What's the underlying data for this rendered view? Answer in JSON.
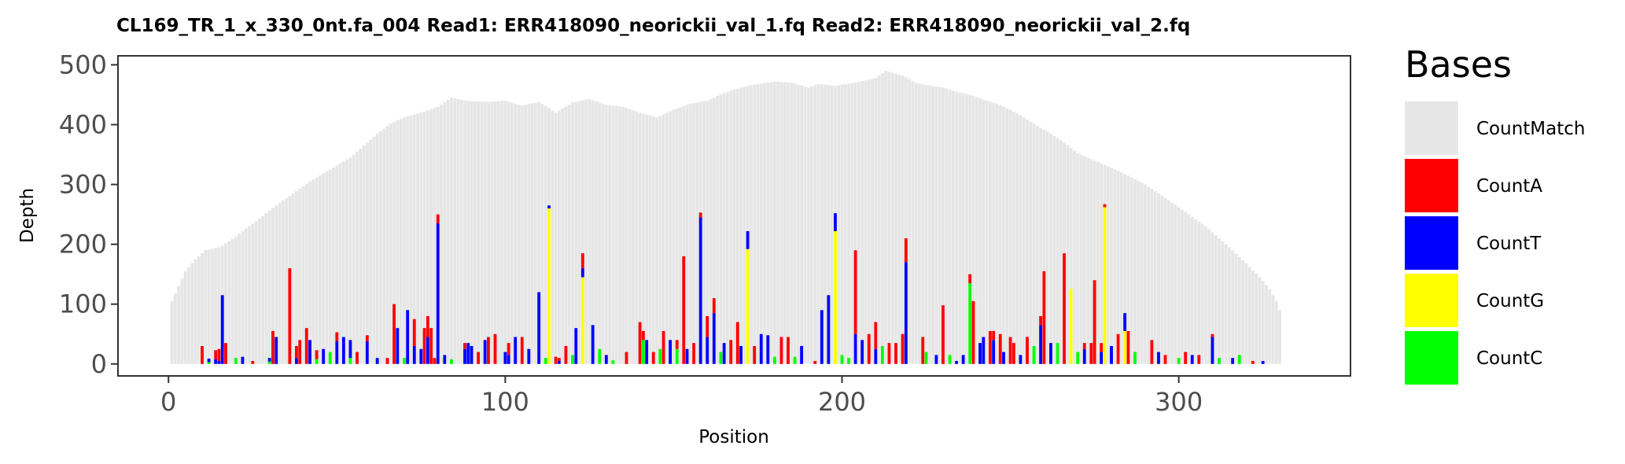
{
  "chart_data": {
    "type": "bar",
    "stacked": true,
    "title": "CL169_TR_1_x_330_0nt.fa_004   Read1: ERR418090_neorickii_val_1.fq   Read2: ERR418090_neorickii_val_2.fq",
    "xlabel": "Position",
    "ylabel": "Depth",
    "xlim": [
      -15,
      351
    ],
    "ylim": [
      -20,
      515
    ],
    "x_ticks": [
      0,
      100,
      200,
      300
    ],
    "y_ticks": [
      0,
      100,
      200,
      300,
      400,
      500
    ],
    "grid": false,
    "legend": {
      "title": "Bases",
      "position": "right",
      "items": [
        {
          "label": "CountMatch",
          "color": "#e6e6e6"
        },
        {
          "label": "CountA",
          "color": "#ff0000"
        },
        {
          "label": "CountT",
          "color": "#0000ff"
        },
        {
          "label": "CountG",
          "color": "#ffff00"
        },
        {
          "label": "CountC",
          "color": "#00ff00"
        }
      ]
    },
    "series_colors": {
      "match": "#e6e6e6",
      "A": "#ff0000",
      "T": "#0000ff",
      "G": "#ffff00",
      "C": "#00ff00"
    },
    "coverage_profile": [
      [
        1,
        105
      ],
      [
        3,
        130
      ],
      [
        5,
        155
      ],
      [
        8,
        175
      ],
      [
        11,
        190
      ],
      [
        15,
        195
      ],
      [
        18,
        205
      ],
      [
        22,
        222
      ],
      [
        27,
        243
      ],
      [
        32,
        265
      ],
      [
        37,
        285
      ],
      [
        42,
        305
      ],
      [
        48,
        325
      ],
      [
        54,
        345
      ],
      [
        58,
        365
      ],
      [
        62,
        385
      ],
      [
        66,
        402
      ],
      [
        70,
        412
      ],
      [
        75,
        420
      ],
      [
        80,
        430
      ],
      [
        84,
        445
      ],
      [
        88,
        440
      ],
      [
        95,
        438
      ],
      [
        100,
        440
      ],
      [
        105,
        432
      ],
      [
        110,
        438
      ],
      [
        115,
        420
      ],
      [
        120,
        437
      ],
      [
        125,
        443
      ],
      [
        130,
        433
      ],
      [
        135,
        430
      ],
      [
        140,
        420
      ],
      [
        145,
        412
      ],
      [
        150,
        425
      ],
      [
        155,
        435
      ],
      [
        160,
        440
      ],
      [
        165,
        453
      ],
      [
        170,
        462
      ],
      [
        175,
        468
      ],
      [
        180,
        472
      ],
      [
        185,
        470
      ],
      [
        190,
        462
      ],
      [
        193,
        468
      ],
      [
        198,
        465
      ],
      [
        204,
        470
      ],
      [
        210,
        478
      ],
      [
        213,
        490
      ],
      [
        218,
        482
      ],
      [
        222,
        470
      ],
      [
        226,
        465
      ],
      [
        230,
        462
      ],
      [
        234,
        455
      ],
      [
        238,
        450
      ],
      [
        242,
        442
      ],
      [
        246,
        435
      ],
      [
        250,
        425
      ],
      [
        254,
        412
      ],
      [
        258,
        398
      ],
      [
        262,
        385
      ],
      [
        266,
        370
      ],
      [
        270,
        352
      ],
      [
        275,
        340
      ],
      [
        280,
        328
      ],
      [
        285,
        315
      ],
      [
        290,
        300
      ],
      [
        294,
        285
      ],
      [
        298,
        270
      ],
      [
        303,
        250
      ],
      [
        308,
        230
      ],
      [
        312,
        210
      ],
      [
        316,
        190
      ],
      [
        320,
        168
      ],
      [
        324,
        145
      ],
      [
        327,
        125
      ],
      [
        329,
        105
      ],
      [
        330,
        90
      ]
    ],
    "mismatch_bars": [
      {
        "x": 10,
        "A": 30
      },
      {
        "x": 12,
        "T": 6,
        "C": 3
      },
      {
        "x": 14,
        "A": 15,
        "T": 8
      },
      {
        "x": 15,
        "A": 20,
        "T": 5
      },
      {
        "x": 16,
        "T": 115
      },
      {
        "x": 17,
        "A": 35
      },
      {
        "x": 20,
        "C": 10
      },
      {
        "x": 22,
        "T": 12
      },
      {
        "x": 25,
        "A": 5
      },
      {
        "x": 30,
        "T": 6,
        "C": 4
      },
      {
        "x": 31,
        "A": 55
      },
      {
        "x": 32,
        "T": 45
      },
      {
        "x": 36,
        "A": 160
      },
      {
        "x": 38,
        "A": 20,
        "T": 10
      },
      {
        "x": 39,
        "A": 40
      },
      {
        "x": 41,
        "A": 60
      },
      {
        "x": 42,
        "T": 40
      },
      {
        "x": 44,
        "A": 15,
        "C": 8
      },
      {
        "x": 46,
        "T": 25
      },
      {
        "x": 48,
        "C": 20
      },
      {
        "x": 50,
        "A": 15,
        "T": 38
      },
      {
        "x": 52,
        "T": 45
      },
      {
        "x": 54,
        "T": 30,
        "C": 10
      },
      {
        "x": 56,
        "A": 20
      },
      {
        "x": 59,
        "A": 10,
        "T": 38
      },
      {
        "x": 62,
        "T": 10
      },
      {
        "x": 65,
        "A": 10
      },
      {
        "x": 67,
        "A": 100
      },
      {
        "x": 68,
        "T": 60
      },
      {
        "x": 70,
        "C": 10
      },
      {
        "x": 71,
        "T": 90
      },
      {
        "x": 73,
        "A": 45,
        "T": 30
      },
      {
        "x": 75,
        "T": 25
      },
      {
        "x": 76,
        "A": 60
      },
      {
        "x": 77,
        "A": 35,
        "T": 45
      },
      {
        "x": 78,
        "A": 60
      },
      {
        "x": 79,
        "A": 10
      },
      {
        "x": 80,
        "A": 15,
        "T": 235
      },
      {
        "x": 82,
        "T": 15
      },
      {
        "x": 84,
        "C": 8
      },
      {
        "x": 88,
        "A": 10,
        "T": 25
      },
      {
        "x": 89,
        "T": 35
      },
      {
        "x": 90,
        "T": 30
      },
      {
        "x": 92,
        "A": 20
      },
      {
        "x": 94,
        "T": 40
      },
      {
        "x": 95,
        "A": 45
      },
      {
        "x": 97,
        "A": 50
      },
      {
        "x": 100,
        "T": 20
      },
      {
        "x": 101,
        "A": 20,
        "T": 15
      },
      {
        "x": 103,
        "T": 45
      },
      {
        "x": 105,
        "A": 45
      },
      {
        "x": 107,
        "T": 25
      },
      {
        "x": 110,
        "T": 120
      },
      {
        "x": 112,
        "C": 10
      },
      {
        "x": 113,
        "T": 5,
        "G": 260
      },
      {
        "x": 115,
        "A": 12
      },
      {
        "x": 116,
        "A": 5,
        "T": 5
      },
      {
        "x": 118,
        "A": 30
      },
      {
        "x": 120,
        "C": 15
      },
      {
        "x": 121,
        "T": 60
      },
      {
        "x": 123,
        "A": 25,
        "T": 15,
        "G": 145
      },
      {
        "x": 126,
        "T": 65
      },
      {
        "x": 128,
        "C": 25
      },
      {
        "x": 130,
        "T": 15
      },
      {
        "x": 132,
        "C": 6
      },
      {
        "x": 136,
        "A": 20
      },
      {
        "x": 140,
        "A": 70
      },
      {
        "x": 141,
        "A": 15,
        "C": 40
      },
      {
        "x": 142,
        "T": 40
      },
      {
        "x": 144,
        "A": 20
      },
      {
        "x": 146,
        "C": 25
      },
      {
        "x": 147,
        "A": 55
      },
      {
        "x": 149,
        "T": 40
      },
      {
        "x": 151,
        "A": 15,
        "C": 25
      },
      {
        "x": 153,
        "A": 180
      },
      {
        "x": 154,
        "T": 25
      },
      {
        "x": 156,
        "A": 35
      },
      {
        "x": 158,
        "A": 8,
        "T": 245
      },
      {
        "x": 160,
        "A": 35,
        "T": 45
      },
      {
        "x": 162,
        "A": 25,
        "T": 85
      },
      {
        "x": 164,
        "C": 20
      },
      {
        "x": 165,
        "T": 35
      },
      {
        "x": 167,
        "A": 40
      },
      {
        "x": 169,
        "A": 70
      },
      {
        "x": 170,
        "T": 30
      },
      {
        "x": 172,
        "T": 30,
        "G": 192
      },
      {
        "x": 174,
        "A": 30
      },
      {
        "x": 176,
        "T": 50
      },
      {
        "x": 178,
        "T": 48
      },
      {
        "x": 180,
        "C": 12
      },
      {
        "x": 182,
        "A": 45
      },
      {
        "x": 184,
        "A": 45
      },
      {
        "x": 186,
        "C": 12
      },
      {
        "x": 188,
        "T": 30
      },
      {
        "x": 192,
        "A": 5
      },
      {
        "x": 194,
        "T": 90
      },
      {
        "x": 196,
        "T": 115
      },
      {
        "x": 198,
        "T": 30,
        "G": 222
      },
      {
        "x": 200,
        "C": 15
      },
      {
        "x": 202,
        "C": 10
      },
      {
        "x": 204,
        "A": 140,
        "T": 50
      },
      {
        "x": 206,
        "T": 40
      },
      {
        "x": 208,
        "A": 50
      },
      {
        "x": 210,
        "A": 45,
        "T": 25
      },
      {
        "x": 212,
        "C": 30
      },
      {
        "x": 214,
        "A": 35
      },
      {
        "x": 216,
        "A": 35
      },
      {
        "x": 218,
        "A": 50
      },
      {
        "x": 219,
        "A": 40,
        "T": 170
      },
      {
        "x": 224,
        "A": 45
      },
      {
        "x": 225,
        "C": 20
      },
      {
        "x": 228,
        "T": 15
      },
      {
        "x": 230,
        "A": 98
      },
      {
        "x": 232,
        "C": 15
      },
      {
        "x": 234,
        "T": 5
      },
      {
        "x": 236,
        "T": 15
      },
      {
        "x": 238,
        "A": 15,
        "C": 135
      },
      {
        "x": 239,
        "A": 105
      },
      {
        "x": 241,
        "T": 35
      },
      {
        "x": 242,
        "T": 45
      },
      {
        "x": 244,
        "A": 55
      },
      {
        "x": 245,
        "A": 15,
        "T": 40
      },
      {
        "x": 247,
        "A": 50
      },
      {
        "x": 248,
        "T": 20
      },
      {
        "x": 250,
        "A": 45
      },
      {
        "x": 251,
        "A": 35
      },
      {
        "x": 253,
        "T": 15
      },
      {
        "x": 255,
        "A": 45
      },
      {
        "x": 257,
        "C": 30
      },
      {
        "x": 259,
        "A": 15,
        "T": 65
      },
      {
        "x": 260,
        "A": 155
      },
      {
        "x": 262,
        "T": 35
      },
      {
        "x": 264,
        "C": 35
      },
      {
        "x": 266,
        "A": 185
      },
      {
        "x": 268,
        "G": 125
      },
      {
        "x": 270,
        "C": 20
      },
      {
        "x": 272,
        "A": 10,
        "T": 25
      },
      {
        "x": 274,
        "A": 35
      },
      {
        "x": 275,
        "A": 140
      },
      {
        "x": 277,
        "A": 15,
        "T": 20
      },
      {
        "x": 278,
        "A": 5,
        "G": 262
      },
      {
        "x": 280,
        "T": 30
      },
      {
        "x": 282,
        "A": 50
      },
      {
        "x": 284,
        "T": 30,
        "G": 55
      },
      {
        "x": 285,
        "A": 55
      },
      {
        "x": 287,
        "C": 20
      },
      {
        "x": 292,
        "A": 40
      },
      {
        "x": 294,
        "T": 20
      },
      {
        "x": 296,
        "A": 15
      },
      {
        "x": 300,
        "C": 10
      },
      {
        "x": 302,
        "A": 20
      },
      {
        "x": 304,
        "T": 15
      },
      {
        "x": 306,
        "A": 15
      },
      {
        "x": 310,
        "A": 5,
        "T": 45
      },
      {
        "x": 312,
        "C": 10
      },
      {
        "x": 316,
        "T": 10
      },
      {
        "x": 318,
        "C": 15
      },
      {
        "x": 322,
        "A": 5
      },
      {
        "x": 325,
        "T": 5
      }
    ]
  }
}
